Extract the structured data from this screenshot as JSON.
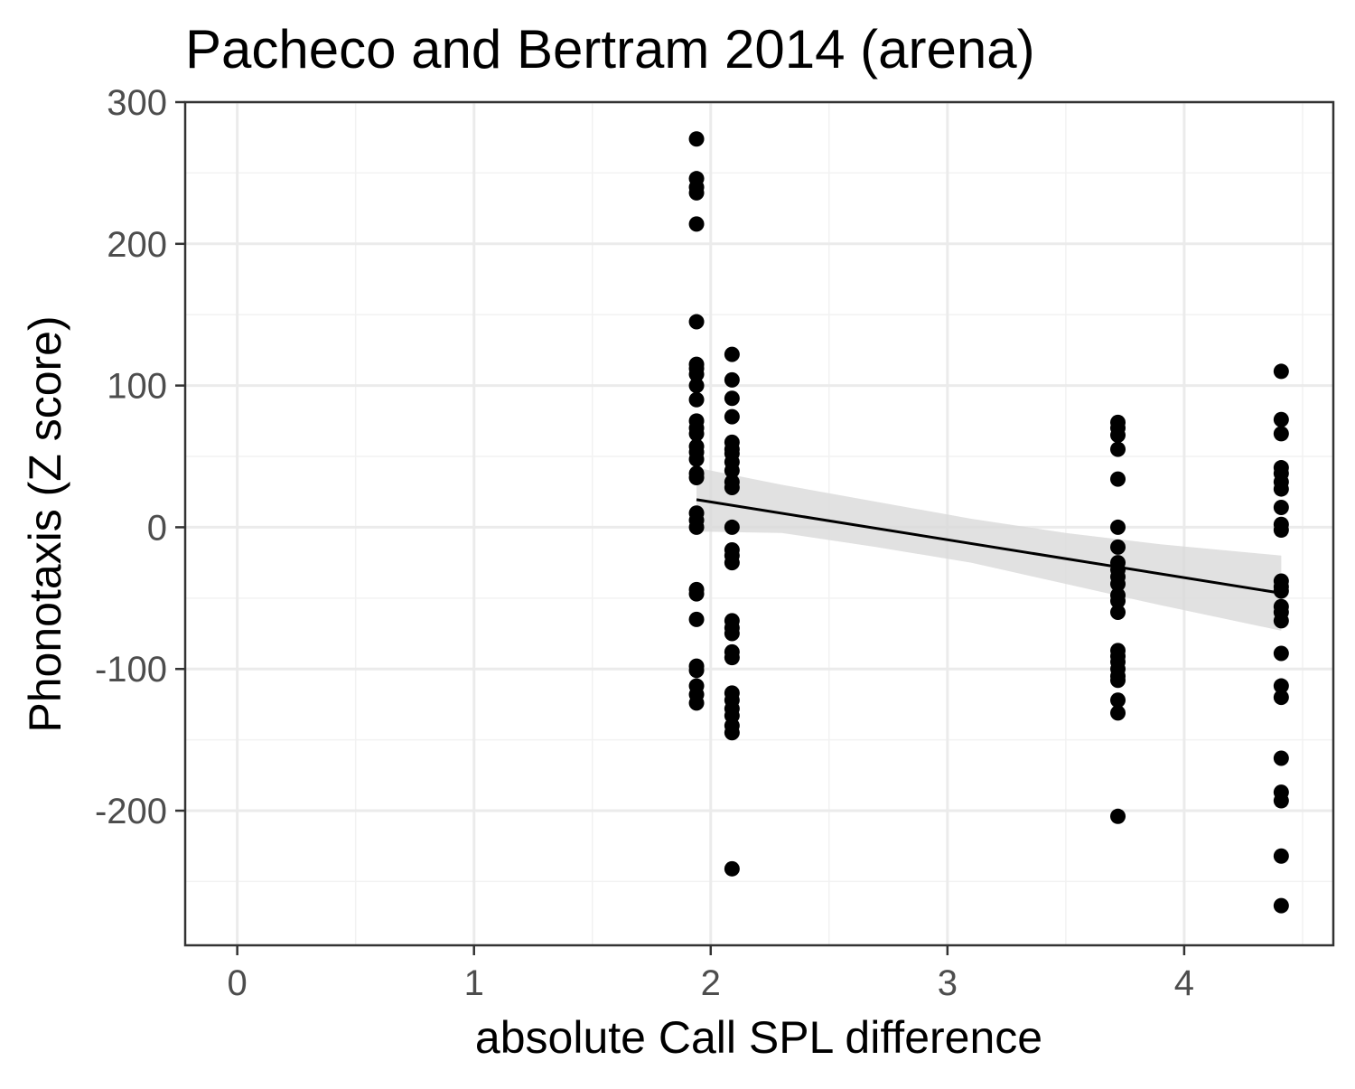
{
  "chart_data": {
    "type": "scatter",
    "title": "Pacheco and Bertram 2014 (arena)",
    "xlabel": "absolute Call SPL difference",
    "ylabel": "Phonotaxis (Z score)",
    "xlim": [
      -0.22,
      4.63
    ],
    "ylim": [
      -295,
      300
    ],
    "x_ticks": [
      0,
      1,
      2,
      3,
      4
    ],
    "x_tick_labels": [
      "0",
      "1",
      "2",
      "3",
      "4"
    ],
    "y_ticks": [
      -200,
      -100,
      0,
      100,
      200,
      300
    ],
    "y_tick_labels": [
      "-200",
      "-100",
      "0",
      "100",
      "200",
      "300"
    ],
    "grid": true,
    "legend": "none",
    "point_color": "#000000",
    "band_color": "#d9d9d9",
    "line_color": "#000000",
    "points": [
      {
        "x": 1.94,
        "y": 274
      },
      {
        "x": 1.94,
        "y": 246
      },
      {
        "x": 1.94,
        "y": 240
      },
      {
        "x": 1.94,
        "y": 236
      },
      {
        "x": 1.94,
        "y": 214
      },
      {
        "x": 1.94,
        "y": 145
      },
      {
        "x": 1.94,
        "y": 115
      },
      {
        "x": 1.94,
        "y": 112
      },
      {
        "x": 1.94,
        "y": 108
      },
      {
        "x": 1.94,
        "y": 100
      },
      {
        "x": 1.94,
        "y": 90
      },
      {
        "x": 1.94,
        "y": 75
      },
      {
        "x": 1.94,
        "y": 70
      },
      {
        "x": 1.94,
        "y": 66
      },
      {
        "x": 1.94,
        "y": 57
      },
      {
        "x": 1.94,
        "y": 53
      },
      {
        "x": 1.94,
        "y": 48
      },
      {
        "x": 1.94,
        "y": 38
      },
      {
        "x": 1.94,
        "y": 35
      },
      {
        "x": 1.94,
        "y": 10
      },
      {
        "x": 1.94,
        "y": 5
      },
      {
        "x": 1.94,
        "y": 0
      },
      {
        "x": 1.94,
        "y": -44
      },
      {
        "x": 1.94,
        "y": -47
      },
      {
        "x": 1.94,
        "y": -65
      },
      {
        "x": 1.94,
        "y": -98
      },
      {
        "x": 1.94,
        "y": -101
      },
      {
        "x": 1.94,
        "y": -112
      },
      {
        "x": 1.94,
        "y": -118
      },
      {
        "x": 1.94,
        "y": -124
      },
      {
        "x": 2.09,
        "y": 122
      },
      {
        "x": 2.09,
        "y": 104
      },
      {
        "x": 2.09,
        "y": 91
      },
      {
        "x": 2.09,
        "y": 78
      },
      {
        "x": 2.09,
        "y": 60
      },
      {
        "x": 2.09,
        "y": 55
      },
      {
        "x": 2.09,
        "y": 52
      },
      {
        "x": 2.09,
        "y": 46
      },
      {
        "x": 2.09,
        "y": 40
      },
      {
        "x": 2.09,
        "y": 32
      },
      {
        "x": 2.09,
        "y": 28
      },
      {
        "x": 2.09,
        "y": 0
      },
      {
        "x": 2.09,
        "y": -16
      },
      {
        "x": 2.09,
        "y": -20
      },
      {
        "x": 2.09,
        "y": -25
      },
      {
        "x": 2.09,
        "y": -66
      },
      {
        "x": 2.09,
        "y": -71
      },
      {
        "x": 2.09,
        "y": -75
      },
      {
        "x": 2.09,
        "y": -88
      },
      {
        "x": 2.09,
        "y": -92
      },
      {
        "x": 2.09,
        "y": -117
      },
      {
        "x": 2.09,
        "y": -122
      },
      {
        "x": 2.09,
        "y": -128
      },
      {
        "x": 2.09,
        "y": -133
      },
      {
        "x": 2.09,
        "y": -140
      },
      {
        "x": 2.09,
        "y": -145
      },
      {
        "x": 2.09,
        "y": -241
      },
      {
        "x": 3.72,
        "y": 74
      },
      {
        "x": 3.72,
        "y": 70
      },
      {
        "x": 3.72,
        "y": 65
      },
      {
        "x": 3.72,
        "y": 55
      },
      {
        "x": 3.72,
        "y": 34
      },
      {
        "x": 3.72,
        "y": 0
      },
      {
        "x": 3.72,
        "y": -14
      },
      {
        "x": 3.72,
        "y": -25
      },
      {
        "x": 3.72,
        "y": -30
      },
      {
        "x": 3.72,
        "y": -35
      },
      {
        "x": 3.72,
        "y": -40
      },
      {
        "x": 3.72,
        "y": -48
      },
      {
        "x": 3.72,
        "y": -52
      },
      {
        "x": 3.72,
        "y": -60
      },
      {
        "x": 3.72,
        "y": -87
      },
      {
        "x": 3.72,
        "y": -91
      },
      {
        "x": 3.72,
        "y": -95
      },
      {
        "x": 3.72,
        "y": -100
      },
      {
        "x": 3.72,
        "y": -105
      },
      {
        "x": 3.72,
        "y": -108
      },
      {
        "x": 3.72,
        "y": -122
      },
      {
        "x": 3.72,
        "y": -131
      },
      {
        "x": 3.72,
        "y": -204
      },
      {
        "x": 4.41,
        "y": 110
      },
      {
        "x": 4.41,
        "y": 76
      },
      {
        "x": 4.41,
        "y": 66
      },
      {
        "x": 4.41,
        "y": 42
      },
      {
        "x": 4.41,
        "y": 38
      },
      {
        "x": 4.41,
        "y": 32
      },
      {
        "x": 4.41,
        "y": 27
      },
      {
        "x": 4.41,
        "y": 14
      },
      {
        "x": 4.41,
        "y": 2
      },
      {
        "x": 4.41,
        "y": -2
      },
      {
        "x": 4.41,
        "y": -38
      },
      {
        "x": 4.41,
        "y": -42
      },
      {
        "x": 4.41,
        "y": -45
      },
      {
        "x": 4.41,
        "y": -56
      },
      {
        "x": 4.41,
        "y": -60
      },
      {
        "x": 4.41,
        "y": -66
      },
      {
        "x": 4.41,
        "y": -89
      },
      {
        "x": 4.41,
        "y": -112
      },
      {
        "x": 4.41,
        "y": -120
      },
      {
        "x": 4.41,
        "y": -163
      },
      {
        "x": 4.41,
        "y": -187
      },
      {
        "x": 4.41,
        "y": -193
      },
      {
        "x": 4.41,
        "y": -232
      },
      {
        "x": 4.41,
        "y": -267
      }
    ],
    "fit_line": {
      "x": [
        1.94,
        4.41
      ],
      "y": [
        19.5,
        -46.5
      ]
    },
    "confidence_band": {
      "x": [
        1.94,
        2.3,
        2.7,
        3.1,
        3.5,
        3.9,
        4.41
      ],
      "upper": [
        42,
        30,
        18,
        6,
        -4,
        -12,
        -20
      ],
      "lower": [
        -3,
        -4,
        -14,
        -25,
        -40,
        -55,
        -73
      ]
    }
  }
}
